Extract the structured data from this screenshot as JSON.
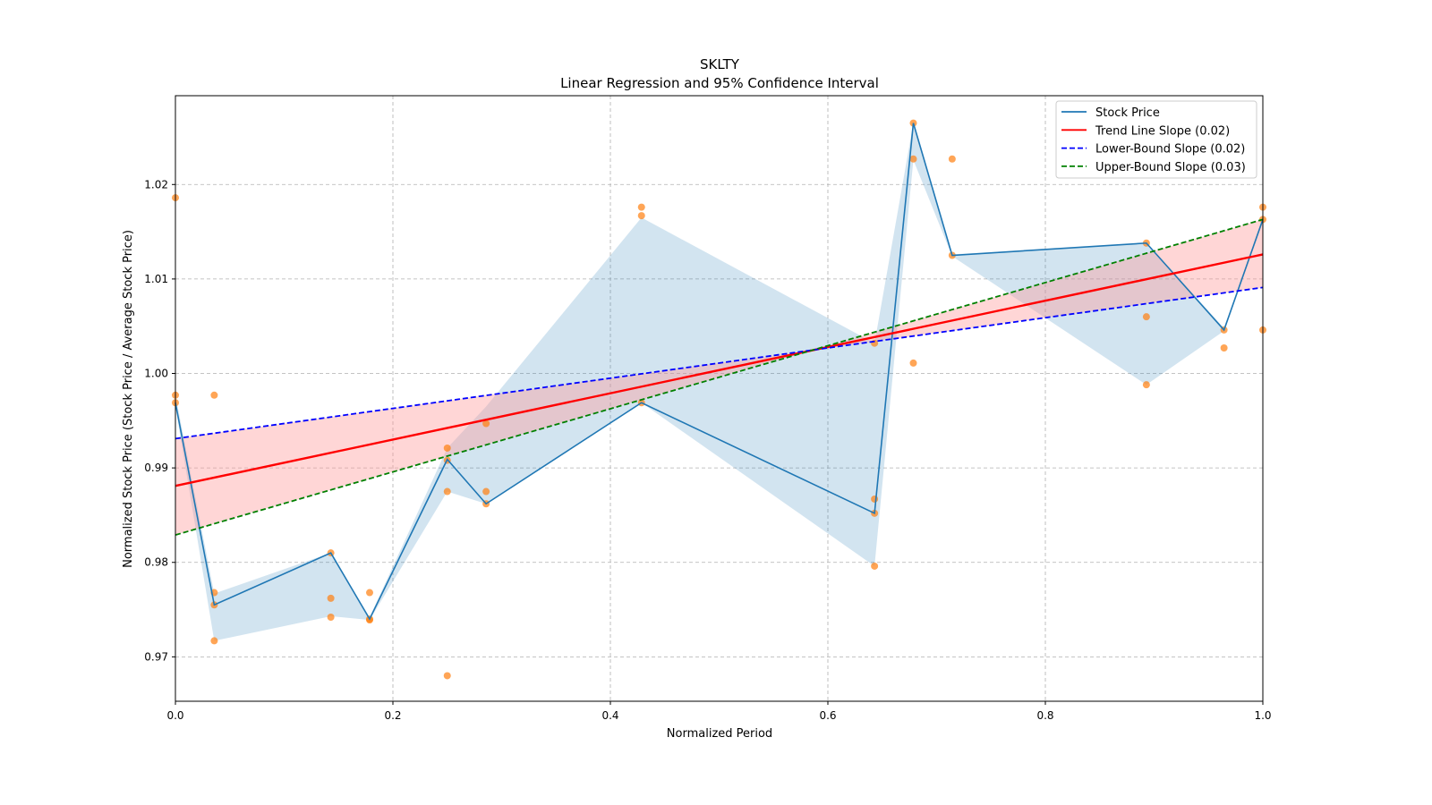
{
  "chart_data": {
    "type": "line",
    "title": "SKLTY",
    "subtitle": "Linear Regression and 95% Confidence Interval",
    "xlabel": "Normalized Period",
    "ylabel": "Normalized Stock Price (Stock Price / Average Stock Price)",
    "xlim": [
      0,
      1
    ],
    "ylim": [
      0.9653,
      1.0294
    ],
    "xticks": [
      "0.0",
      "0.2",
      "0.4",
      "0.6",
      "0.8",
      "1.0"
    ],
    "yticks": [
      "0.97",
      "0.98",
      "0.99",
      "1.00",
      "1.01",
      "1.02"
    ],
    "grid": true,
    "legend_position": "top-right",
    "colors": {
      "stock": "#1f77b4",
      "band": "#1f77b4",
      "scatter": "#ff7f0e",
      "trend": "#ff0000",
      "lower": "#0000ff",
      "upper": "#008000",
      "trend_band": "#ff9999"
    },
    "legend": [
      "Stock Price",
      "Trend Line Slope (0.02)",
      "Lower-Bound Slope (0.02)",
      "Upper-Bound Slope (0.03)"
    ],
    "stock_price": {
      "x": [
        0,
        0.0357,
        0.1429,
        0.1786,
        0.25,
        0.2857,
        0.4286,
        0.6429,
        0.6786,
        0.7143,
        0.8929,
        0.9643,
        1.0
      ],
      "y": [
        0.9969,
        0.9755,
        0.981,
        0.974,
        0.9909,
        0.9862,
        0.9969,
        0.9852,
        1.0265,
        1.0125,
        1.0138,
        1.0046,
        1.0163
      ]
    },
    "stock_band": {
      "lower": [
        0.9965,
        0.9717,
        0.9743,
        0.9739,
        0.9875,
        0.9862,
        0.9969,
        0.9796,
        1.0226,
        1.0124,
        0.9988,
        1.0045,
        1.016
      ],
      "upper": [
        0.9977,
        0.9767,
        0.981,
        0.9742,
        0.9921,
        0.9965,
        1.0165,
        1.0032,
        1.0265,
        1.0126,
        1.0138,
        1.0048,
        1.0165
      ]
    },
    "scatter": [
      [
        0,
        1.0186
      ],
      [
        0,
        0.9977
      ],
      [
        0,
        0.9969
      ],
      [
        0.0357,
        0.9977
      ],
      [
        0.0357,
        0.9768
      ],
      [
        0.0357,
        0.9755
      ],
      [
        0.0357,
        0.9717
      ],
      [
        0.1429,
        0.981
      ],
      [
        0.1429,
        0.9762
      ],
      [
        0.1429,
        0.9742
      ],
      [
        0.1786,
        0.9768
      ],
      [
        0.1786,
        0.974
      ],
      [
        0.1786,
        0.9739
      ],
      [
        0.25,
        0.9921
      ],
      [
        0.25,
        0.9908
      ],
      [
        0.25,
        0.9875
      ],
      [
        0.25,
        0.968
      ],
      [
        0.2857,
        0.9947
      ],
      [
        0.2857,
        0.9875
      ],
      [
        0.2857,
        0.9862
      ],
      [
        0.4286,
        1.0176
      ],
      [
        0.4286,
        1.0167
      ],
      [
        0.4286,
        0.9969
      ],
      [
        0.6429,
        1.0032
      ],
      [
        0.6429,
        0.9867
      ],
      [
        0.6429,
        0.9852
      ],
      [
        0.6429,
        0.9796
      ],
      [
        0.6786,
        1.0265
      ],
      [
        0.6786,
        1.0227
      ],
      [
        0.6786,
        1.0011
      ],
      [
        0.7143,
        1.0227
      ],
      [
        0.7143,
        1.0125
      ],
      [
        0.8929,
        1.0138
      ],
      [
        0.8929,
        1.006
      ],
      [
        0.8929,
        0.9988
      ],
      [
        0.9643,
        1.0046
      ],
      [
        0.9643,
        1.0027
      ],
      [
        1.0,
        1.0176
      ],
      [
        1.0,
        1.0163
      ],
      [
        1.0,
        1.0046
      ]
    ],
    "trend_line": {
      "x": [
        0,
        1
      ],
      "y": [
        0.9881,
        1.0126
      ]
    },
    "lower_bound_line": {
      "x": [
        0,
        1
      ],
      "y": [
        0.9931,
        1.0091
      ]
    },
    "upper_bound_line": {
      "x": [
        0,
        1
      ],
      "y": [
        0.9829,
        1.0163
      ]
    }
  }
}
